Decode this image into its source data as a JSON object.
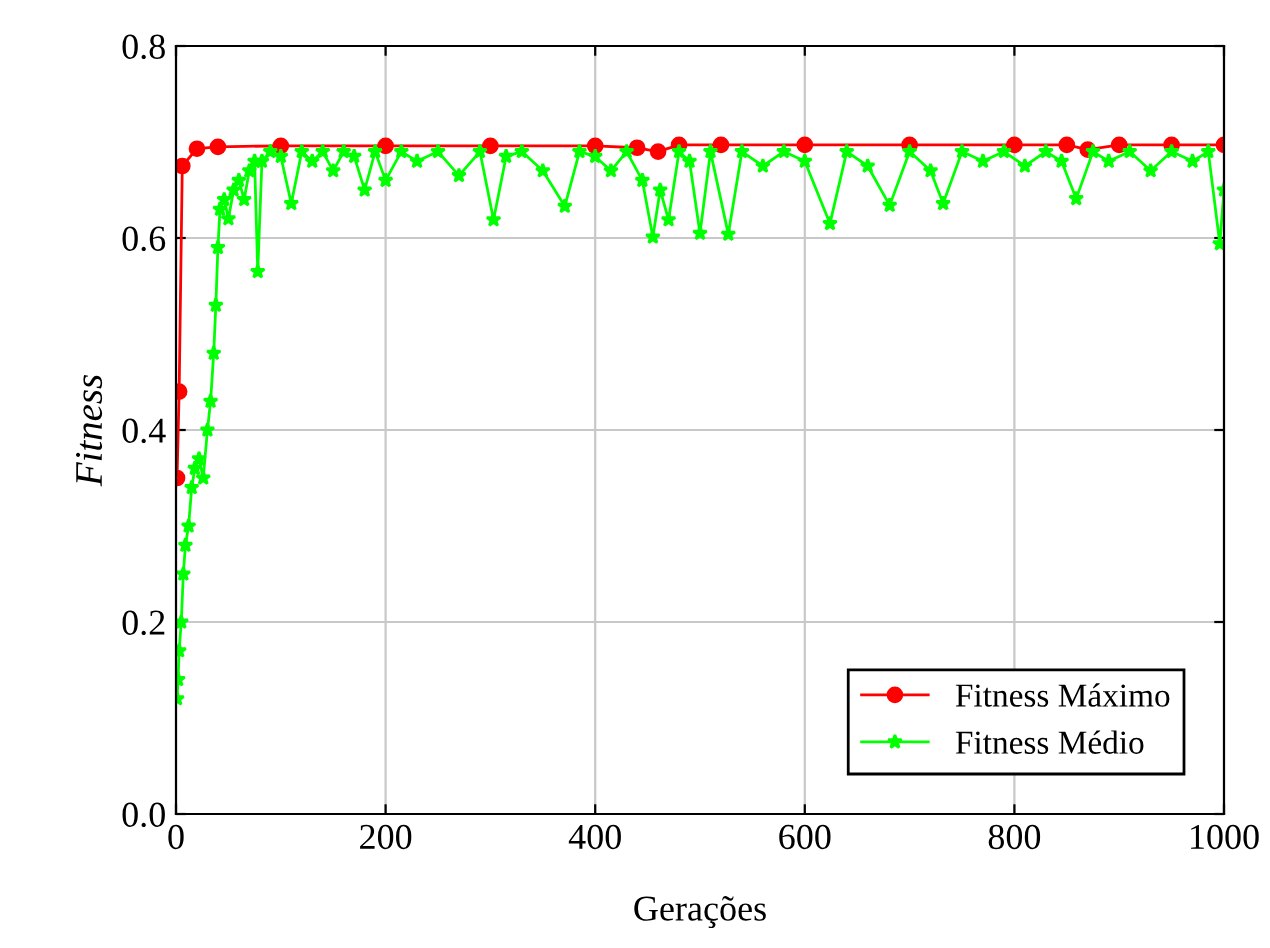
{
  "chart_data": {
    "type": "line",
    "xlabel": "Gerações",
    "ylabel": "Fitness",
    "xlim": [
      0,
      1000
    ],
    "ylim": [
      0,
      0.8
    ],
    "xticks": [
      0,
      200,
      400,
      600,
      800,
      1000
    ],
    "yticks": [
      {
        "value": 0,
        "label": "0.0"
      },
      {
        "value": 0.2,
        "label": "0.2"
      },
      {
        "value": 0.4,
        "label": "0.4"
      },
      {
        "value": 0.6,
        "label": "0.6"
      },
      {
        "value": 0.8,
        "label": "0.8"
      }
    ],
    "grid": true,
    "legend": "bottom right",
    "series": [
      {
        "name": "Fitness Máximo",
        "color": "#ff0000",
        "marker": "circle",
        "x": [
          1,
          3,
          6,
          20,
          40,
          100,
          200,
          300,
          400,
          440,
          460,
          480,
          520,
          600,
          700,
          800,
          850,
          870,
          900,
          950,
          1000
        ],
        "values": [
          0.35,
          0.44,
          0.675,
          0.693,
          0.695,
          0.696,
          0.696,
          0.696,
          0.696,
          0.694,
          0.69,
          0.697,
          0.697,
          0.697,
          0.697,
          0.697,
          0.697,
          0.692,
          0.697,
          0.697,
          0.697
        ]
      },
      {
        "name": "Fitness Médio",
        "color": "#00ff00",
        "marker": "star",
        "x": [
          1,
          2,
          3,
          5,
          7,
          9,
          12,
          15,
          18,
          22,
          26,
          30,
          33,
          36,
          38,
          40,
          42,
          46,
          50,
          55,
          60,
          65,
          70,
          75,
          78,
          82,
          90,
          100,
          110,
          120,
          130,
          140,
          150,
          160,
          170,
          180,
          190,
          200,
          215,
          230,
          250,
          270,
          290,
          303,
          315,
          330,
          350,
          371,
          385,
          400,
          415,
          430,
          445,
          455,
          462,
          470,
          480,
          490,
          500,
          510,
          527,
          540,
          560,
          580,
          600,
          624,
          640,
          660,
          681,
          700,
          720,
          732,
          750,
          770,
          790,
          810,
          830,
          845,
          859,
          875,
          890,
          910,
          930,
          950,
          970,
          985,
          996,
          1000
        ],
        "values": [
          0.12,
          0.14,
          0.17,
          0.2,
          0.25,
          0.28,
          0.3,
          0.34,
          0.36,
          0.37,
          0.35,
          0.4,
          0.43,
          0.48,
          0.53,
          0.59,
          0.63,
          0.64,
          0.62,
          0.65,
          0.66,
          0.64,
          0.67,
          0.68,
          0.565,
          0.68,
          0.69,
          0.685,
          0.636,
          0.69,
          0.68,
          0.69,
          0.67,
          0.69,
          0.685,
          0.65,
          0.69,
          0.66,
          0.69,
          0.68,
          0.69,
          0.665,
          0.69,
          0.619,
          0.685,
          0.69,
          0.67,
          0.633,
          0.69,
          0.685,
          0.67,
          0.69,
          0.66,
          0.601,
          0.65,
          0.619,
          0.69,
          0.68,
          0.605,
          0.69,
          0.604,
          0.69,
          0.675,
          0.69,
          0.68,
          0.615,
          0.69,
          0.675,
          0.634,
          0.69,
          0.67,
          0.636,
          0.69,
          0.68,
          0.69,
          0.675,
          0.69,
          0.68,
          0.641,
          0.69,
          0.68,
          0.69,
          0.67,
          0.69,
          0.68,
          0.69,
          0.594,
          0.65
        ]
      }
    ]
  }
}
